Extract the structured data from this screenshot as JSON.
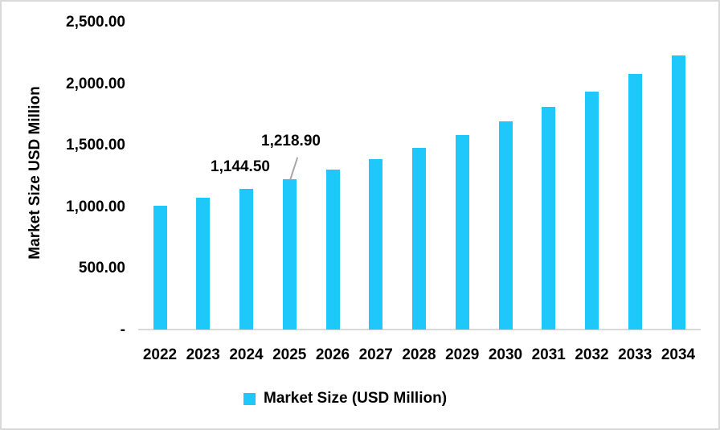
{
  "chart_data": {
    "type": "bar",
    "title": "",
    "xlabel": "",
    "ylabel": "Market Size USD Million",
    "ylim": [
      0,
      2500
    ],
    "yticks": [
      "-",
      "500.00",
      "1,000.00",
      "1,500.00",
      "2,000.00",
      "2,500.00"
    ],
    "categories": [
      "2022",
      "2023",
      "2024",
      "2025",
      "2026",
      "2027",
      "2028",
      "2029",
      "2030",
      "2031",
      "2032",
      "2033",
      "2034"
    ],
    "series": [
      {
        "name": "Market Size (USD Million)",
        "color": "#1ec8fb",
        "values": [
          1005,
          1072,
          1144.5,
          1218.9,
          1297,
          1382,
          1474,
          1578,
          1689,
          1806,
          1930,
          2073,
          2223
        ]
      }
    ],
    "annotations": [
      {
        "category": "2024",
        "text": "1,144.50"
      },
      {
        "category": "2025",
        "text": "1,218.90"
      }
    ],
    "legend_position": "bottom",
    "grid": false
  },
  "labels": {
    "ylabel": "Market Size USD Million",
    "legend": "Market Size (USD Million)",
    "annotation_2024": "1,144.50",
    "annotation_2025": "1,218.90"
  }
}
